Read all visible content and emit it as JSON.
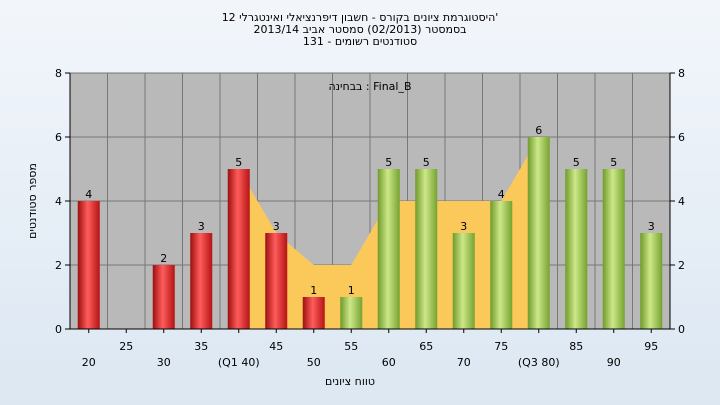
{
  "chart_data": {
    "type": "bar",
    "title_lines": [
      "היסטוגרמת ציונים בקורס - חשבון דיפרנציאלי ואינטגרלי 12'",
      "בסמסטר  (02/2013)  סמסטר אביב 2013/14",
      "סטודנטים רשומים - 131"
    ],
    "annotation": "בבחינה : Final_B",
    "ylabel": "מספר סטודנטים",
    "xlabel": "טווח ציונים",
    "ylim": [
      0,
      8
    ],
    "yticks": [
      0,
      2,
      4,
      6,
      8
    ],
    "categories": [
      "20",
      "25",
      "30",
      "35",
      "(Q1 40)",
      "45",
      "50",
      "55",
      "60",
      "65",
      "70",
      "75",
      "(Q3 80)",
      "85",
      "90",
      "95"
    ],
    "values": [
      4,
      0,
      2,
      3,
      5,
      3,
      1,
      1,
      5,
      5,
      3,
      4,
      6,
      5,
      5,
      3
    ],
    "bar_colors": [
      "red",
      "red",
      "red",
      "red",
      "red",
      "red",
      "red",
      "green",
      "green",
      "green",
      "green",
      "green",
      "green",
      "green",
      "green",
      "green"
    ],
    "area_band": {
      "start_index": 4,
      "end_index": 12,
      "values": [
        5,
        3,
        2,
        2,
        4,
        4,
        4,
        4,
        6
      ]
    },
    "grid": true,
    "colors": {
      "plot_bg": "#b9b9b9",
      "red_bar": "#e22a2a",
      "green_bar": "#9cc94a",
      "band": "#fbc95a",
      "gridline": "#777777"
    }
  }
}
